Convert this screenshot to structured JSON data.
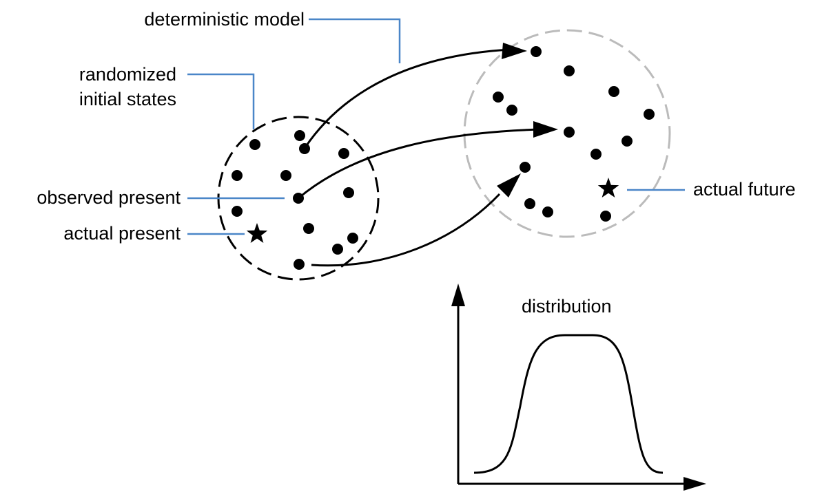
{
  "labels": {
    "deterministic_model": "deterministic model",
    "randomized_initial_states_line1": "randomized",
    "randomized_initial_states_line2": "initial states",
    "observed_present": "observed present",
    "actual_present": "actual present",
    "actual_future": "actual future",
    "distribution": "distribution"
  },
  "colors": {
    "callout_line": "#4a86c8",
    "present_circle": "#000000",
    "future_circle": "#bbbbbb",
    "ink": "#000000"
  },
  "icons": {
    "actual_present": "star-icon",
    "actual_future": "star-icon"
  }
}
